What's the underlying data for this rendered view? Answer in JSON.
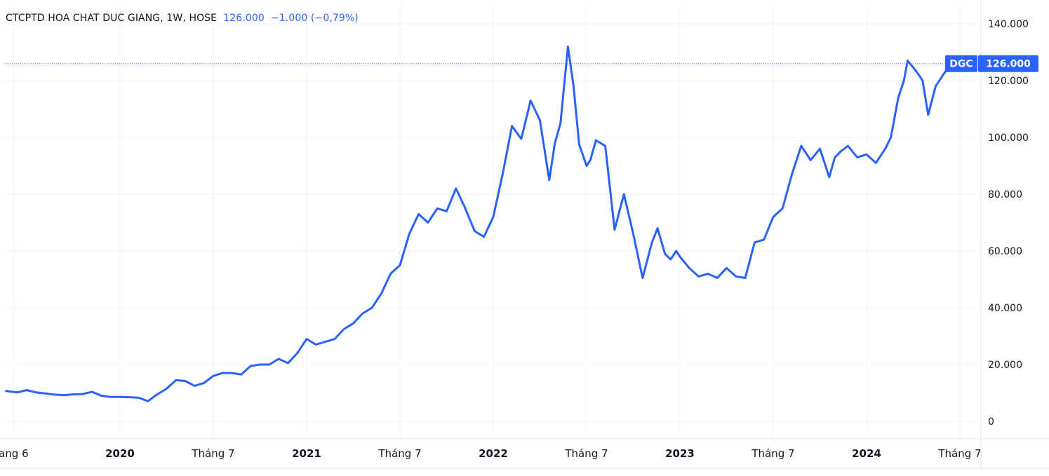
{
  "header": {
    "symbol_name": "CTCPTD HOA CHAT DUC GIANG",
    "interval": "1W",
    "exchange": "HOSE",
    "price": "126.000",
    "change": "−1.000",
    "change_pct": "(−0,79%)"
  },
  "price_badge": {
    "ticker": "DGC",
    "value": "126.000",
    "color": "#2962ff"
  },
  "colors": {
    "line": "#2962ff",
    "grid": "#f0f3fa",
    "text": "#131722"
  },
  "chart_data": {
    "type": "line",
    "title": "CTCPTD HOA CHAT DUC GIANG, 1W, HOSE",
    "series": [
      {
        "name": "DGC",
        "x": [
          2019.39,
          2019.45,
          2019.5,
          2019.55,
          2019.6,
          2019.65,
          2019.7,
          2019.75,
          2019.8,
          2019.85,
          2019.9,
          2019.95,
          2020.0,
          2020.05,
          2020.1,
          2020.15,
          2020.2,
          2020.25,
          2020.3,
          2020.35,
          2020.4,
          2020.45,
          2020.5,
          2020.55,
          2020.6,
          2020.65,
          2020.7,
          2020.75,
          2020.8,
          2020.85,
          2020.9,
          2020.95,
          2021.0,
          2021.05,
          2021.1,
          2021.15,
          2021.2,
          2021.25,
          2021.3,
          2021.35,
          2021.4,
          2021.45,
          2021.5,
          2021.55,
          2021.6,
          2021.65,
          2021.7,
          2021.75,
          2021.8,
          2021.85,
          2021.9,
          2021.95,
          2022.0,
          2022.05,
          2022.1,
          2022.15,
          2022.2,
          2022.25,
          2022.3,
          2022.33,
          2022.36,
          2022.4,
          2022.43,
          2022.46,
          2022.5,
          2022.52,
          2022.55,
          2022.6,
          2022.65,
          2022.7,
          2022.75,
          2022.8,
          2022.85,
          2022.88,
          2022.92,
          2022.95,
          2022.98,
          2023.0,
          2023.05,
          2023.1,
          2023.15,
          2023.2,
          2023.25,
          2023.3,
          2023.35,
          2023.4,
          2023.45,
          2023.5,
          2023.55,
          2023.6,
          2023.65,
          2023.7,
          2023.75,
          2023.8,
          2023.83,
          2023.86,
          2023.9,
          2023.95,
          2024.0,
          2024.05,
          2024.1,
          2024.13,
          2024.17,
          2024.2,
          2024.22,
          2024.27,
          2024.3,
          2024.33,
          2024.37,
          2024.42,
          2024.45
        ],
        "y": [
          10.7,
          10.2,
          11.0,
          10.2,
          9.8,
          9.4,
          9.2,
          9.5,
          9.6,
          10.4,
          9.0,
          8.6,
          8.6,
          8.5,
          8.3,
          7.1,
          9.5,
          11.5,
          14.5,
          14.2,
          12.5,
          13.5,
          16.0,
          17.0,
          17.0,
          16.5,
          19.5,
          20.0,
          20.0,
          22.0,
          20.5,
          24.0,
          29.0,
          27.0,
          28.0,
          29.0,
          32.5,
          34.5,
          38.0,
          40.0,
          45.0,
          52.0,
          55.0,
          66.0,
          73.0,
          70.0,
          75.0,
          74.0,
          82.0,
          75.0,
          67.0,
          65.0,
          72.0,
          87.0,
          104.0,
          99.5,
          113.0,
          106.0,
          85.0,
          98.0,
          105.0,
          132.0,
          118.0,
          97.5,
          90.0,
          92.0,
          99.0,
          97.0,
          67.5,
          80.0,
          66.0,
          50.5,
          63.0,
          68.0,
          59.0,
          57.0,
          60.0,
          58.0,
          54.0,
          51.0,
          52.0,
          50.5,
          54.0,
          51.0,
          50.5,
          63.0,
          64.0,
          72.0,
          75.0,
          87.0,
          97.0,
          92.0,
          96.0,
          86.0,
          93.0,
          95.0,
          97.0,
          93.0,
          94.0,
          91.0,
          96.0,
          100.0,
          114.0,
          120.0,
          127.0,
          123.0,
          120.0,
          108.0,
          118.0,
          123.0,
          126.0
        ]
      }
    ],
    "xlim": [
      2019.39,
      2024.62
    ],
    "ylim": [
      -5,
      142
    ],
    "y_ticks": [
      0,
      20,
      40,
      60,
      80,
      100,
      120,
      140
    ],
    "y_tick_labels": [
      "0",
      "20.000",
      "40.000",
      "60.000",
      "80.000",
      "100.000",
      "120.000",
      "140.000"
    ],
    "x_ticks": [
      {
        "label": "ang 6",
        "x": 2019.43,
        "bold": false
      },
      {
        "label": "2020",
        "x": 2020.0,
        "bold": true
      },
      {
        "label": "Tháng 7",
        "x": 2020.5,
        "bold": false
      },
      {
        "label": "2021",
        "x": 2021.0,
        "bold": true
      },
      {
        "label": "Tháng 7",
        "x": 2021.5,
        "bold": false
      },
      {
        "label": "2022",
        "x": 2022.0,
        "bold": true
      },
      {
        "label": "Tháng 7",
        "x": 2022.5,
        "bold": false
      },
      {
        "label": "2023",
        "x": 2023.0,
        "bold": true
      },
      {
        "label": "Tháng 7",
        "x": 2023.5,
        "bold": false
      },
      {
        "label": "2024",
        "x": 2024.0,
        "bold": true
      },
      {
        "label": "Tháng 7",
        "x": 2024.5,
        "bold": false
      }
    ],
    "last_price": 126,
    "grid": true,
    "scale_position": "right"
  }
}
